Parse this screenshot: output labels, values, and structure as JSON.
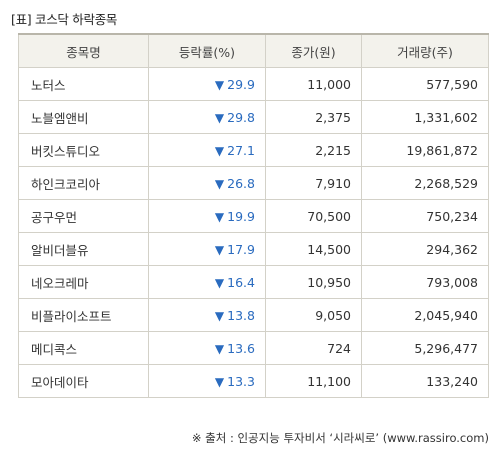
{
  "title": "[표] 코스닥 하락종목",
  "columns": [
    "종목명",
    "등락률(%)",
    "종가(원)",
    "거래량(주)"
  ],
  "arrow_symbol": "▼",
  "rows": [
    {
      "name": "노터스",
      "change": "29.9",
      "close": "11,000",
      "volume": "577,590"
    },
    {
      "name": "노블엠앤비",
      "change": "29.8",
      "close": "2,375",
      "volume": "1,331,602"
    },
    {
      "name": "버킷스튜디오",
      "change": "27.1",
      "close": "2,215",
      "volume": "19,861,872"
    },
    {
      "name": "하인크코리아",
      "change": "26.8",
      "close": "7,910",
      "volume": "2,268,529"
    },
    {
      "name": "공구우먼",
      "change": "19.9",
      "close": "70,500",
      "volume": "750,234"
    },
    {
      "name": "알비더블유",
      "change": "17.9",
      "close": "14,500",
      "volume": "294,362"
    },
    {
      "name": "네오크레마",
      "change": "16.4",
      "close": "10,950",
      "volume": "793,008"
    },
    {
      "name": "비플라이소프트",
      "change": "13.8",
      "close": "9,050",
      "volume": "2,045,940"
    },
    {
      "name": "메디콕스",
      "change": "13.6",
      "close": "724",
      "volume": "5,296,477"
    },
    {
      "name": "모아데이타",
      "change": "13.3",
      "close": "11,100",
      "volume": "133,240"
    }
  ],
  "source": "※ 출처 : 인공지능 투자비서 ‘시라씨로’ (www.rassiro.com)",
  "colors": {
    "decline": "#2a6bbf",
    "header_bg": "#f3f2ec",
    "border": "#d3d1c8"
  }
}
